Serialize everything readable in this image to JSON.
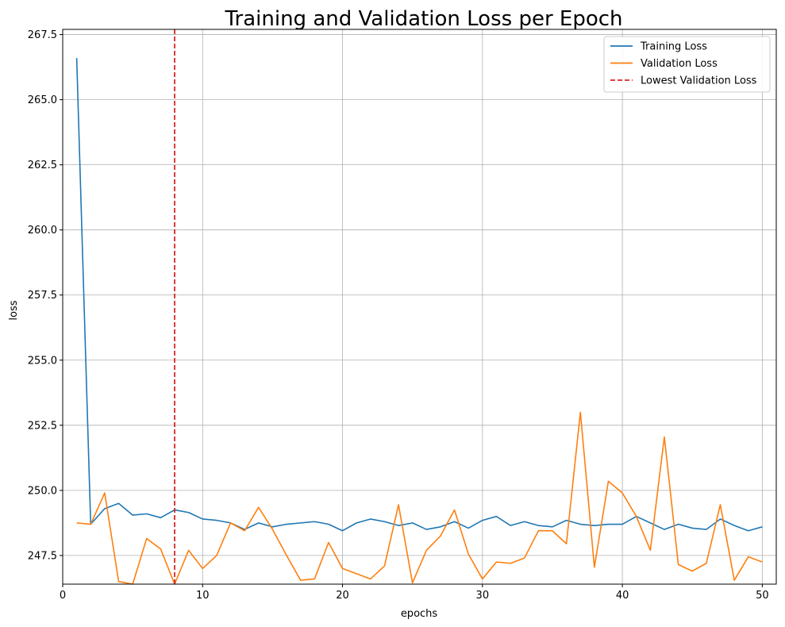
{
  "chart_data": {
    "type": "line",
    "title": "Training and Validation Loss per Epoch",
    "xlabel": "epochs",
    "ylabel": "loss",
    "xlim": [
      0,
      51
    ],
    "ylim": [
      246.4,
      267.7
    ],
    "xticks": [
      0,
      10,
      20,
      30,
      40,
      50
    ],
    "yticks": [
      247.5,
      250.0,
      252.5,
      255.0,
      257.5,
      260.0,
      262.5,
      265.0,
      267.5
    ],
    "ytick_labels": [
      "247.5",
      "250.0",
      "252.5",
      "255.0",
      "257.5",
      "260.0",
      "262.5",
      "265.0",
      "267.5"
    ],
    "xtick_labels": [
      "0",
      "10",
      "20",
      "30",
      "40",
      "50"
    ],
    "grid": true,
    "legend_position": "top-right",
    "x": [
      1,
      2,
      3,
      4,
      5,
      6,
      7,
      8,
      9,
      10,
      11,
      12,
      13,
      14,
      15,
      16,
      17,
      18,
      19,
      20,
      21,
      22,
      23,
      24,
      25,
      26,
      27,
      28,
      29,
      30,
      31,
      32,
      33,
      34,
      35,
      36,
      37,
      38,
      39,
      40,
      41,
      42,
      43,
      44,
      45,
      46,
      47,
      48,
      49,
      50
    ],
    "series": [
      {
        "name": "Training Loss",
        "color": "#1f77b4",
        "values": [
          266.6,
          248.7,
          249.3,
          249.5,
          249.05,
          249.1,
          248.95,
          249.25,
          249.15,
          248.9,
          248.85,
          248.75,
          248.5,
          248.75,
          248.6,
          248.7,
          248.75,
          248.8,
          248.7,
          248.45,
          248.75,
          248.9,
          248.8,
          248.65,
          248.75,
          248.5,
          248.6,
          248.8,
          248.55,
          248.85,
          249.0,
          248.65,
          248.8,
          248.65,
          248.6,
          248.85,
          248.7,
          248.65,
          248.7,
          248.7,
          249.0,
          248.75,
          248.5,
          248.7,
          248.55,
          248.5,
          248.9,
          248.65,
          248.45,
          248.6
        ]
      },
      {
        "name": "Validation Loss",
        "color": "#ff7f0e",
        "values": [
          248.75,
          248.7,
          249.9,
          246.5,
          246.4,
          248.15,
          247.75,
          246.4,
          247.7,
          247.0,
          247.5,
          248.75,
          248.45,
          249.35,
          248.5,
          247.5,
          246.55,
          246.6,
          248.0,
          247.0,
          246.8,
          246.6,
          247.1,
          249.45,
          246.45,
          247.7,
          248.25,
          249.25,
          247.55,
          246.6,
          247.25,
          247.2,
          247.4,
          248.45,
          248.45,
          247.95,
          253.0,
          247.05,
          250.35,
          249.9,
          249.0,
          247.7,
          252.05,
          247.15,
          246.9,
          247.2,
          249.45,
          246.55,
          247.45,
          247.25
        ]
      }
    ],
    "annotations": [
      {
        "type": "vline",
        "name": "Lowest Validation Loss",
        "x": 8,
        "color": "#d62728",
        "style": "dashed"
      }
    ]
  }
}
